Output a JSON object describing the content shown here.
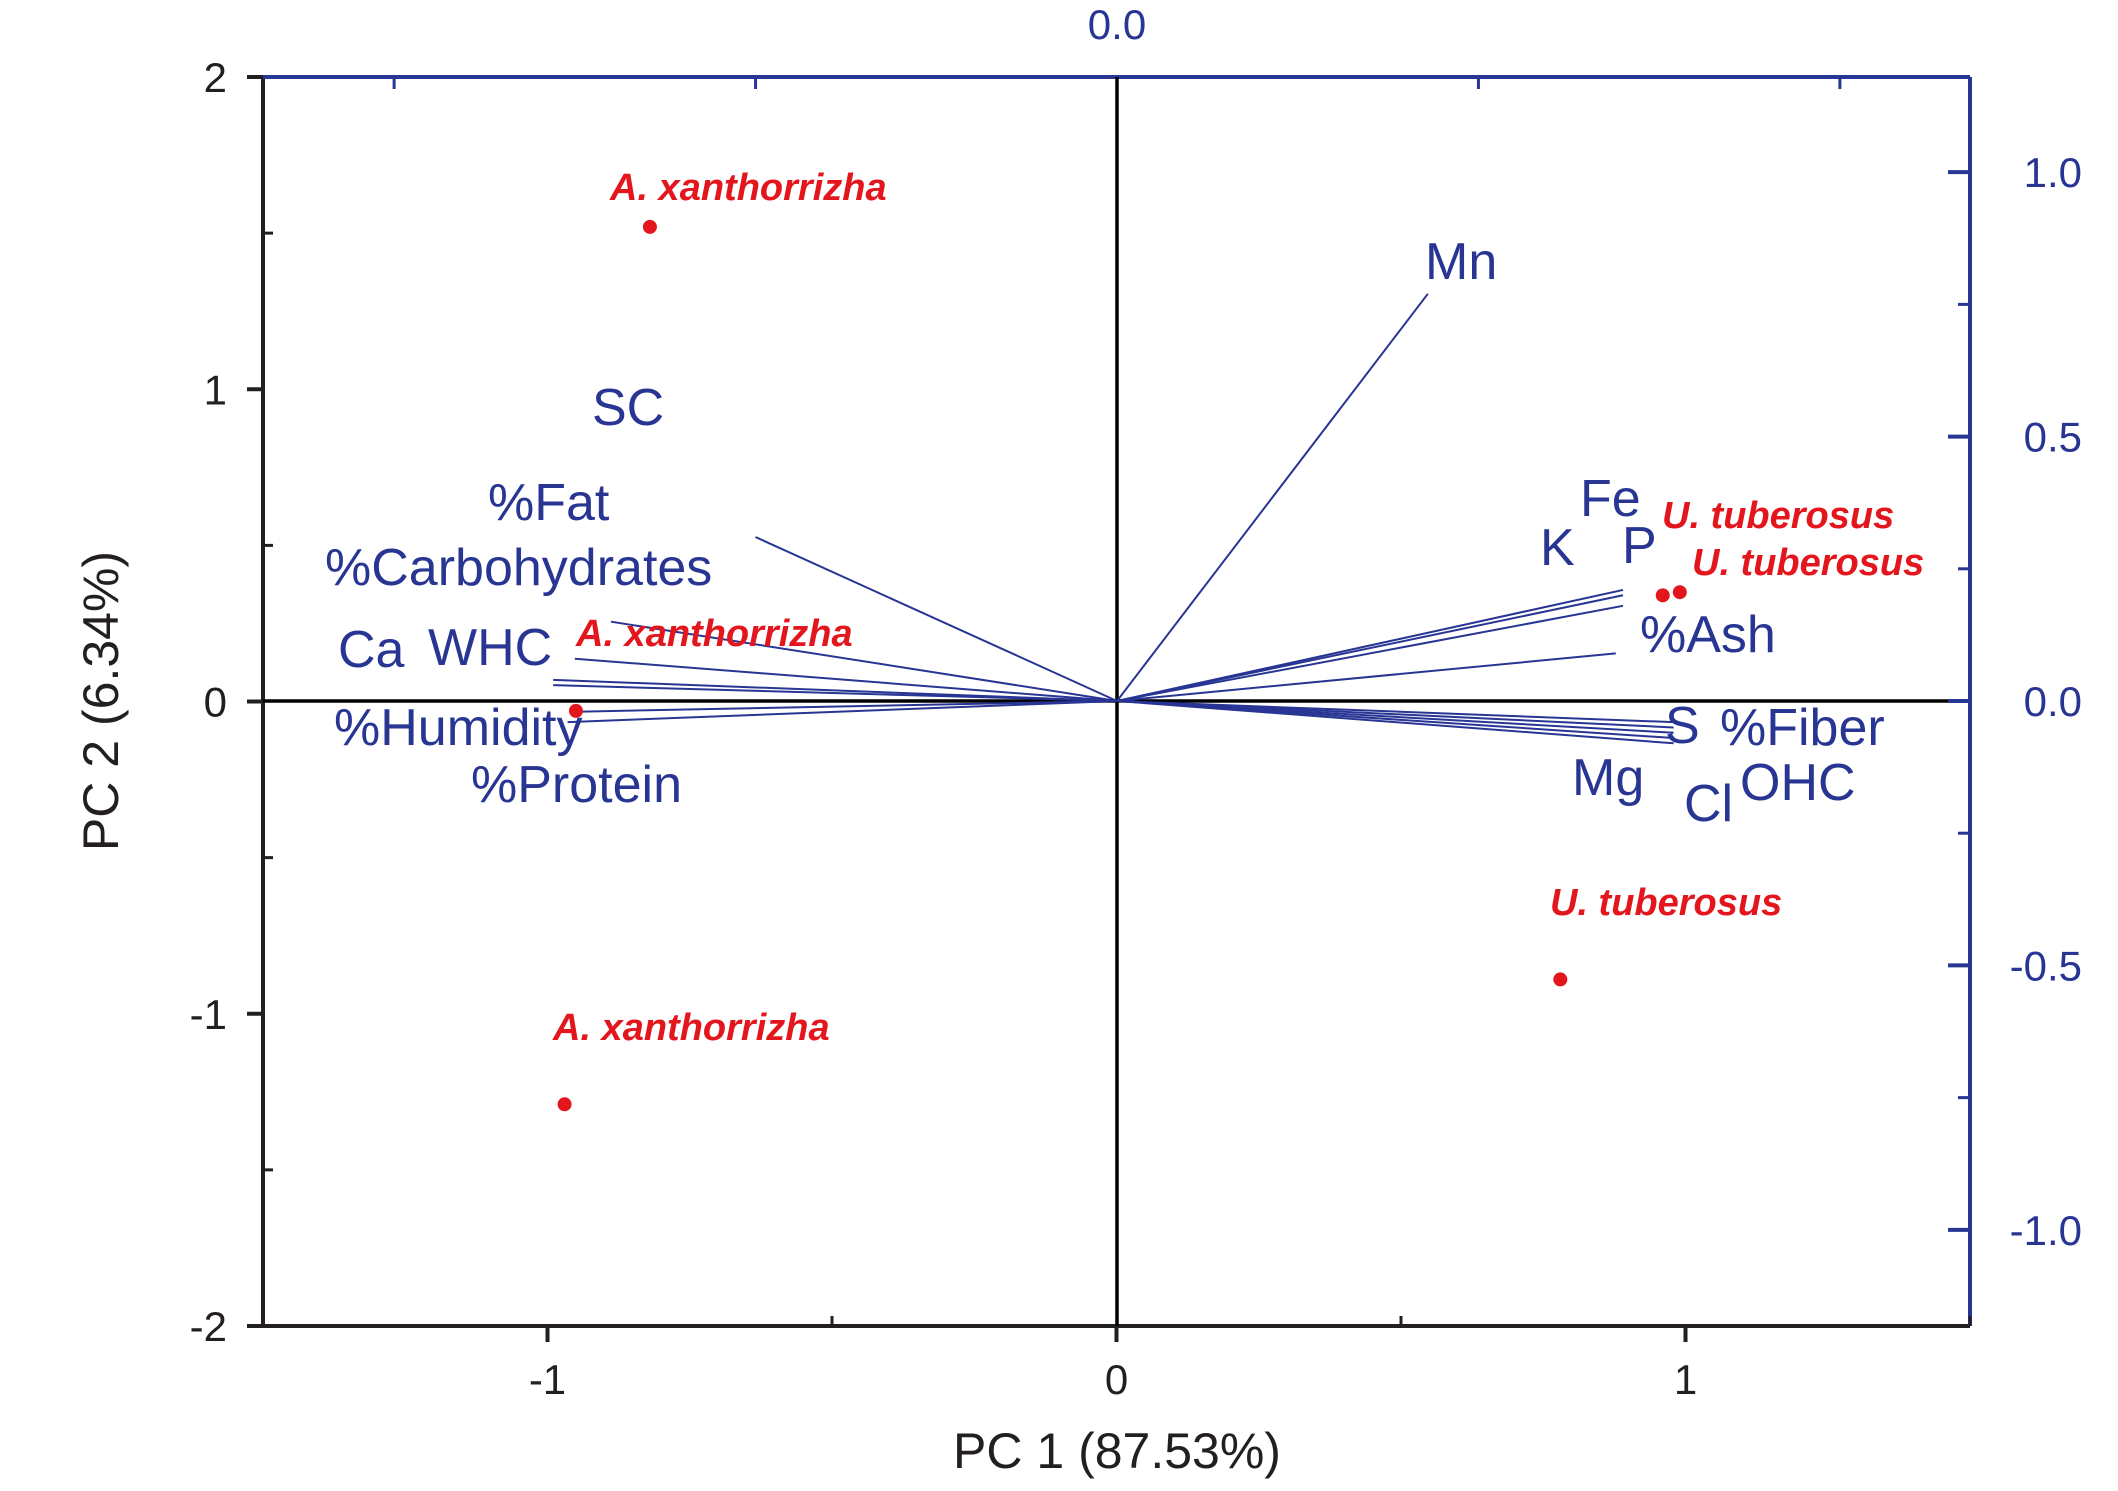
{
  "chart_data": {
    "type": "scatter",
    "subtype": "pca-biplot",
    "xlabel": "PC 1 (87.53%)",
    "ylabel": "PC 2 (6.34%)",
    "xlim": [
      -1.5,
      1.5
    ],
    "ylim": [
      -2,
      2
    ],
    "x_ticks": [
      -1,
      0,
      1
    ],
    "y_ticks": [
      -2,
      -1,
      0,
      1,
      2
    ],
    "loading_axes": {
      "right_ticks": [
        -1.0,
        -0.5,
        0.0,
        0.5,
        1.0
      ],
      "top_ticks": [
        0.0
      ],
      "range": [
        -1.18,
        1.18
      ],
      "color": "#283593"
    },
    "colors": {
      "scores": "#e3161e",
      "loadings": "#283593",
      "frame_left_bottom": "#231f20"
    },
    "samples": [
      {
        "label": "A. xanthorrizha",
        "x": -0.82,
        "y": 1.52
      },
      {
        "label": "A. xanthorrizha",
        "x": -0.95,
        "y": -0.03
      },
      {
        "label": "A. xanthorrizha",
        "x": -0.97,
        "y": -1.29
      },
      {
        "label": "U. tuberosus",
        "x": 0.96,
        "y": 0.34
      },
      {
        "label": "U. tuberosus",
        "x": 0.99,
        "y": 0.35
      },
      {
        "label": "U. tuberosus",
        "x": 0.78,
        "y": -0.89
      }
    ],
    "loadings": [
      {
        "name": "SC",
        "x": -0.5,
        "y": 0.31
      },
      {
        "name": "%Fat",
        "x": -0.7,
        "y": 0.15
      },
      {
        "name": "%Carbohydrates",
        "x": -0.75,
        "y": 0.08
      },
      {
        "name": "Ca",
        "x": -0.78,
        "y": 0.04
      },
      {
        "name": "WHC",
        "x": -0.78,
        "y": 0.03
      },
      {
        "name": "%Humidity",
        "x": -0.74,
        "y": -0.02
      },
      {
        "name": "%Protein",
        "x": -0.76,
        "y": -0.04
      },
      {
        "name": "Mn",
        "x": 0.43,
        "y": 0.77
      },
      {
        "name": "Fe",
        "x": 0.7,
        "y": 0.21
      },
      {
        "name": "K",
        "x": 0.7,
        "y": 0.2
      },
      {
        "name": "P",
        "x": 0.7,
        "y": 0.18
      },
      {
        "name": "%Ash",
        "x": 0.69,
        "y": 0.09
      },
      {
        "name": "S",
        "x": 0.77,
        "y": -0.04
      },
      {
        "name": "%Fiber",
        "x": 0.77,
        "y": -0.05
      },
      {
        "name": "Mg",
        "x": 0.77,
        "y": -0.06
      },
      {
        "name": "Cl",
        "x": 0.77,
        "y": -0.07
      },
      {
        "name": "OHC",
        "x": 0.77,
        "y": -0.08
      }
    ]
  }
}
